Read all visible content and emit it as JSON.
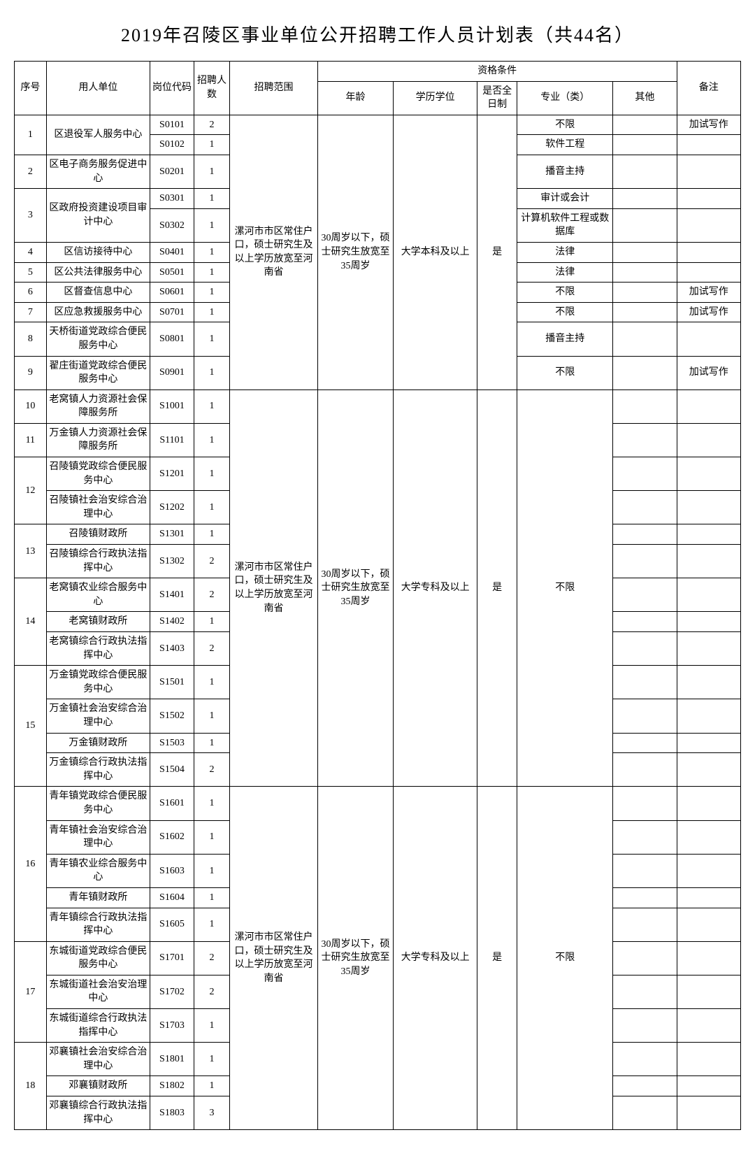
{
  "title": "2019年召陵区事业单位公开招聘工作人员计划表（共44名）",
  "headers": {
    "seq": "序号",
    "unit": "用人单位",
    "code": "岗位代码",
    "num": "招聘人数",
    "scope": "招聘范围",
    "qual": "资格条件",
    "age": "年龄",
    "edu": "学历学位",
    "ft": "是否全日制",
    "major": "专业（类）",
    "other": "其他",
    "remark": "备注"
  },
  "scope_text": "漯河市市区常住户口，硕士研究生及以上学历放宽至河南省",
  "age_text": "30周岁以下，硕士研究生放宽至35周岁",
  "edu_benke": "大学本科及以上",
  "edu_zhuanke": "大学专科及以上",
  "ft_yes": "是",
  "major_unlim": "不限",
  "groups": [
    {
      "scope_rows": 11,
      "edu": "大学本科及以上",
      "seqs": [
        {
          "seq": "1",
          "unit": "区退役军人服务中心",
          "unit_rows": 2,
          "rows": [
            {
              "code": "S0101",
              "num": "2",
              "major": "不限",
              "other": "",
              "remark": "加试写作"
            },
            {
              "code": "S0102",
              "num": "1",
              "major": "软件工程",
              "other": "",
              "remark": ""
            }
          ]
        },
        {
          "seq": "2",
          "unit": "区电子商务服务促进中心",
          "unit_rows": 1,
          "rows": [
            {
              "code": "S0201",
              "num": "1",
              "major": "播音主持",
              "other": "",
              "remark": ""
            }
          ]
        },
        {
          "seq": "3",
          "unit": "区政府投资建设项目审计中心",
          "unit_rows": 2,
          "rows": [
            {
              "code": "S0301",
              "num": "1",
              "major": "审计或会计",
              "other": "",
              "remark": ""
            },
            {
              "code": "S0302",
              "num": "1",
              "major": "计算机软件工程或数据库",
              "other": "",
              "remark": ""
            }
          ]
        },
        {
          "seq": "4",
          "unit": "区信访接待中心",
          "unit_rows": 1,
          "rows": [
            {
              "code": "S0401",
              "num": "1",
              "major": "法律",
              "other": "",
              "remark": ""
            }
          ]
        },
        {
          "seq": "5",
          "unit": "区公共法律服务中心",
          "unit_rows": 1,
          "rows": [
            {
              "code": "S0501",
              "num": "1",
              "major": "法律",
              "other": "",
              "remark": ""
            }
          ]
        },
        {
          "seq": "6",
          "unit": "区督查信息中心",
          "unit_rows": 1,
          "rows": [
            {
              "code": "S0601",
              "num": "1",
              "major": "不限",
              "other": "",
              "remark": "加试写作"
            }
          ]
        },
        {
          "seq": "7",
          "unit": "区应急救援服务中心",
          "unit_rows": 1,
          "rows": [
            {
              "code": "S0701",
              "num": "1",
              "major": "不限",
              "other": "",
              "remark": "加试写作"
            }
          ]
        },
        {
          "seq": "8",
          "unit": "天桥街道党政综合便民服务中心",
          "unit_rows": 1,
          "rows": [
            {
              "code": "S0801",
              "num": "1",
              "major": "播音主持",
              "other": "",
              "remark": ""
            }
          ]
        },
        {
          "seq": "9",
          "unit": "翟庄街道党政综合便民服务中心",
          "unit_rows": 1,
          "rows": [
            {
              "code": "S0901",
              "num": "1",
              "major": "不限",
              "other": "",
              "remark": "加试写作"
            }
          ]
        }
      ]
    },
    {
      "scope_rows": 13,
      "edu": "大学专科及以上",
      "major_merged": true,
      "seqs": [
        {
          "seq": "10",
          "unit": "老窝镇人力资源社会保障服务所",
          "unit_rows": 1,
          "rows": [
            {
              "code": "S1001",
              "num": "1",
              "other": "",
              "remark": ""
            }
          ]
        },
        {
          "seq": "11",
          "unit": "万金镇人力资源社会保障服务所",
          "unit_rows": 1,
          "rows": [
            {
              "code": "S1101",
              "num": "1",
              "other": "",
              "remark": ""
            }
          ]
        },
        {
          "seq": "12",
          "seq_rows": 2,
          "sub": [
            {
              "unit": "召陵镇党政综合便民服务中心",
              "rows": [
                {
                  "code": "S1201",
                  "num": "1",
                  "other": "",
                  "remark": ""
                }
              ]
            },
            {
              "unit": "召陵镇社会治安综合治理中心",
              "rows": [
                {
                  "code": "S1202",
                  "num": "1",
                  "other": "",
                  "remark": ""
                }
              ]
            }
          ]
        },
        {
          "seq": "13",
          "seq_rows": 2,
          "sub": [
            {
              "unit": "召陵镇财政所",
              "rows": [
                {
                  "code": "S1301",
                  "num": "1",
                  "other": "",
                  "remark": ""
                }
              ]
            },
            {
              "unit": "召陵镇综合行政执法指挥中心",
              "rows": [
                {
                  "code": "S1302",
                  "num": "2",
                  "other": "",
                  "remark": ""
                }
              ]
            }
          ]
        },
        {
          "seq": "14",
          "seq_rows": 3,
          "sub": [
            {
              "unit": "老窝镇农业综合服务中心",
              "rows": [
                {
                  "code": "S1401",
                  "num": "2",
                  "other": "",
                  "remark": ""
                }
              ]
            },
            {
              "unit": "老窝镇财政所",
              "rows": [
                {
                  "code": "S1402",
                  "num": "1",
                  "other": "",
                  "remark": ""
                }
              ]
            },
            {
              "unit": "老窝镇综合行政执法指挥中心",
              "rows": [
                {
                  "code": "S1403",
                  "num": "2",
                  "other": "",
                  "remark": ""
                }
              ]
            }
          ]
        },
        {
          "seq": "15",
          "seq_rows": 4,
          "sub": [
            {
              "unit": "万金镇党政综合便民服务中心",
              "rows": [
                {
                  "code": "S1501",
                  "num": "1",
                  "other": "",
                  "remark": ""
                }
              ]
            },
            {
              "unit": "万金镇社会治安综合治理中心",
              "rows": [
                {
                  "code": "S1502",
                  "num": "1",
                  "other": "",
                  "remark": ""
                }
              ]
            },
            {
              "unit": "万金镇财政所",
              "rows": [
                {
                  "code": "S1503",
                  "num": "1",
                  "other": "",
                  "remark": ""
                }
              ]
            },
            {
              "unit": "万金镇综合行政执法指挥中心",
              "rows": [
                {
                  "code": "S1504",
                  "num": "2",
                  "other": "",
                  "remark": ""
                }
              ]
            }
          ]
        }
      ]
    },
    {
      "scope_rows": 11,
      "edu": "大学专科及以上",
      "major_merged": true,
      "seqs": [
        {
          "seq": "16",
          "seq_rows": 5,
          "sub": [
            {
              "unit": "青年镇党政综合便民服务中心",
              "rows": [
                {
                  "code": "S1601",
                  "num": "1",
                  "other": "",
                  "remark": ""
                }
              ]
            },
            {
              "unit": "青年镇社会治安综合治理中心",
              "rows": [
                {
                  "code": "S1602",
                  "num": "1",
                  "other": "",
                  "remark": ""
                }
              ]
            },
            {
              "unit": "青年镇农业综合服务中心",
              "rows": [
                {
                  "code": "S1603",
                  "num": "1",
                  "other": "",
                  "remark": ""
                }
              ]
            },
            {
              "unit": "青年镇财政所",
              "rows": [
                {
                  "code": "S1604",
                  "num": "1",
                  "other": "",
                  "remark": ""
                }
              ]
            },
            {
              "unit": "青年镇综合行政执法指挥中心",
              "rows": [
                {
                  "code": "S1605",
                  "num": "1",
                  "other": "",
                  "remark": ""
                }
              ]
            }
          ]
        },
        {
          "seq": "17",
          "seq_rows": 3,
          "sub": [
            {
              "unit": "东城街道党政综合便民服务中心",
              "rows": [
                {
                  "code": "S1701",
                  "num": "2",
                  "other": "",
                  "remark": ""
                }
              ]
            },
            {
              "unit": "东城街道社会治安治理中心",
              "rows": [
                {
                  "code": "S1702",
                  "num": "2",
                  "other": "",
                  "remark": ""
                }
              ]
            },
            {
              "unit": "东城街道综合行政执法指挥中心",
              "rows": [
                {
                  "code": "S1703",
                  "num": "1",
                  "other": "",
                  "remark": ""
                }
              ]
            }
          ]
        },
        {
          "seq": "18",
          "seq_rows": 3,
          "sub": [
            {
              "unit": "邓襄镇社会治安综合治理中心",
              "rows": [
                {
                  "code": "S1801",
                  "num": "1",
                  "other": "",
                  "remark": ""
                }
              ]
            },
            {
              "unit": "邓襄镇财政所",
              "rows": [
                {
                  "code": "S1802",
                  "num": "1",
                  "other": "",
                  "remark": ""
                }
              ]
            },
            {
              "unit": "邓襄镇综合行政执法指挥中心",
              "rows": [
                {
                  "code": "S1803",
                  "num": "3",
                  "other": "",
                  "remark": ""
                }
              ]
            }
          ]
        }
      ]
    }
  ]
}
